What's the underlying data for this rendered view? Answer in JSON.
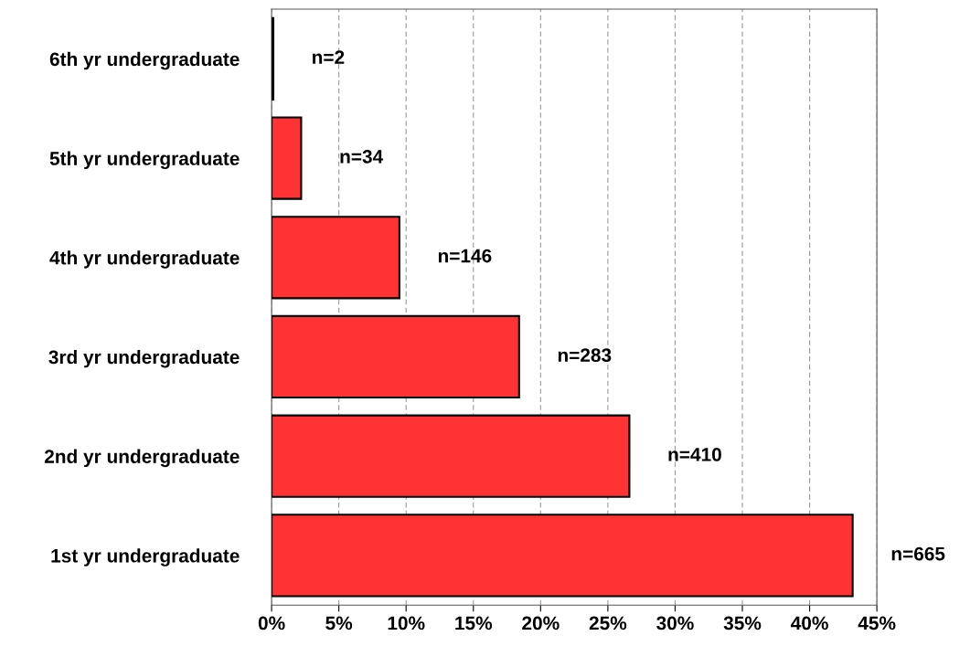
{
  "chart_data": {
    "type": "bar",
    "orientation": "horizontal",
    "categories": [
      "6th yr undergraduate",
      "5th yr undergraduate",
      "4th yr undergraduate",
      "3rd yr undergraduate",
      "2nd yr undergraduate",
      "1st yr undergraduate"
    ],
    "values": [
      0.13,
      2.2,
      9.5,
      18.4,
      26.6,
      43.2
    ],
    "annotations": [
      {
        "text": "n=2",
        "x": 0.13,
        "y": "6th yr undergraduate"
      },
      {
        "text": "n=34",
        "x": 2.2,
        "y": "5th yr undergraduate"
      },
      {
        "text": "n=146",
        "x": 9.5,
        "y": "4th yr undergraduate"
      },
      {
        "text": "n=283",
        "x": 18.4,
        "y": "3rd yr undergraduate"
      },
      {
        "text": "n=410",
        "x": 26.6,
        "y": "2nd yr undergraduate"
      },
      {
        "text": "n=665",
        "x": 43.2,
        "y": "1st yr undergraduate"
      }
    ],
    "color": "#ff3333",
    "xlim": [
      0,
      45
    ],
    "xticks": [
      {
        "value": 0,
        "label": "0%"
      },
      {
        "value": 5,
        "label": "5%"
      },
      {
        "value": 10,
        "label": "10%"
      },
      {
        "value": 15,
        "label": "15%"
      },
      {
        "value": 20,
        "label": "20%"
      },
      {
        "value": 25,
        "label": "25%"
      },
      {
        "value": 30,
        "label": "30%"
      },
      {
        "value": 35,
        "label": "35%"
      },
      {
        "value": 40,
        "label": "40%"
      },
      {
        "value": 45,
        "label": "45%"
      }
    ],
    "grid": "x"
  }
}
